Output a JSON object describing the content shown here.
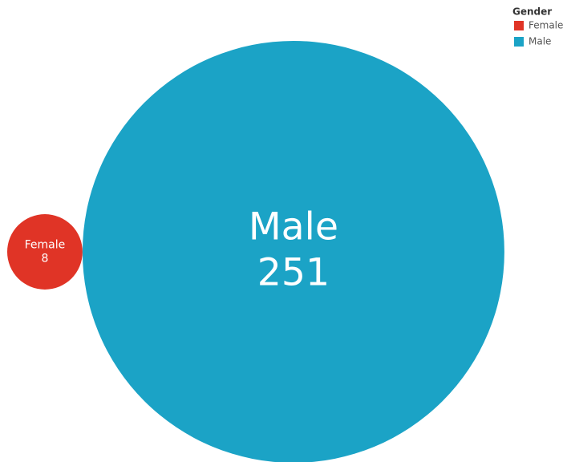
{
  "chart_data": {
    "type": "bubble",
    "legend_title": "Gender",
    "categories": [
      "Female",
      "Male"
    ],
    "values": [
      8,
      251
    ],
    "colors": [
      "#e03426",
      "#1ba3c6"
    ],
    "legend": "top-right"
  }
}
